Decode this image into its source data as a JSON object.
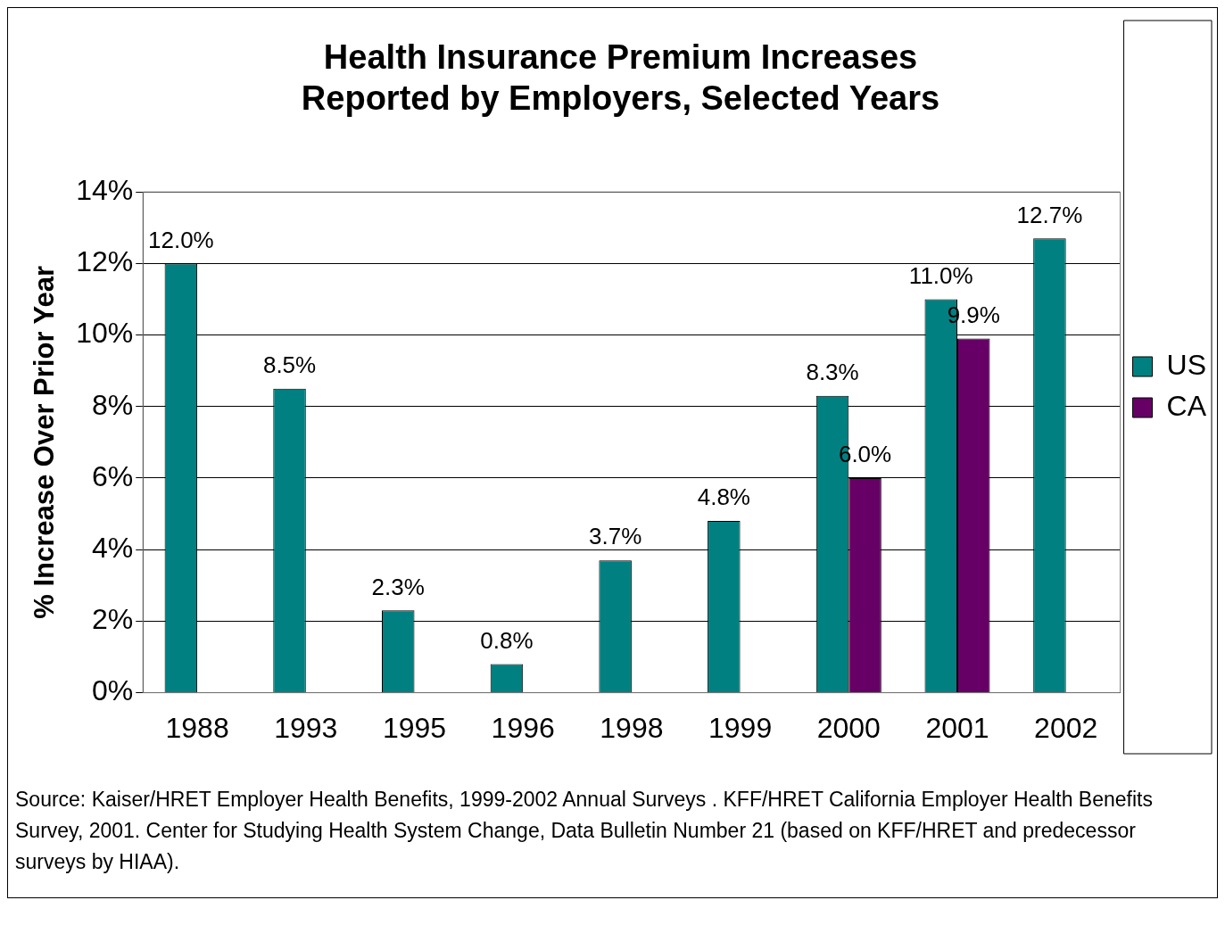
{
  "chart_data": {
    "type": "bar",
    "title": "Health Insurance Premium Increases\nReported by Employers, Selected Years",
    "ylabel": "% Increase Over Prior Year",
    "categories": [
      "1988",
      "1993",
      "1995",
      "1996",
      "1998",
      "1999",
      "2000",
      "2001",
      "2002"
    ],
    "series": [
      {
        "name": "US",
        "color": "#008080",
        "values": [
          12.0,
          8.5,
          2.3,
          0.8,
          3.7,
          4.8,
          8.3,
          11.0,
          12.7
        ],
        "value_labels": [
          "12.0%",
          "8.5%",
          "2.3%",
          "0.8%",
          "3.7%",
          "4.8%",
          "8.3%",
          "11.0%",
          "12.7%"
        ]
      },
      {
        "name": "CA",
        "color": "#660066",
        "values": [
          null,
          null,
          null,
          null,
          null,
          null,
          6.0,
          9.9,
          null
        ],
        "value_labels": [
          null,
          null,
          null,
          null,
          null,
          null,
          "6.0%",
          "9.9%",
          null
        ]
      }
    ],
    "ylim": [
      0,
      14
    ],
    "yticks": [
      {
        "value": 0,
        "label": "0%"
      },
      {
        "value": 2,
        "label": "2%"
      },
      {
        "value": 4,
        "label": "4%"
      },
      {
        "value": 6,
        "label": "6%"
      },
      {
        "value": 8,
        "label": "8%"
      },
      {
        "value": 10,
        "label": "10%"
      },
      {
        "value": 12,
        "label": "12%"
      },
      {
        "value": 14,
        "label": "14%"
      }
    ],
    "grid": "y",
    "legend": "right",
    "annotations": [
      "Source:  Kaiser/HRET Employer Health Benefits, 1999-2002 Annual Surveys .  KFF/HRET California Employer Health Benefits Survey, 2001.  Center for Studying Health System Change, Data Bulletin Number 21 (based on KFF/HRET and predecessor surveys by HIAA)."
    ]
  }
}
